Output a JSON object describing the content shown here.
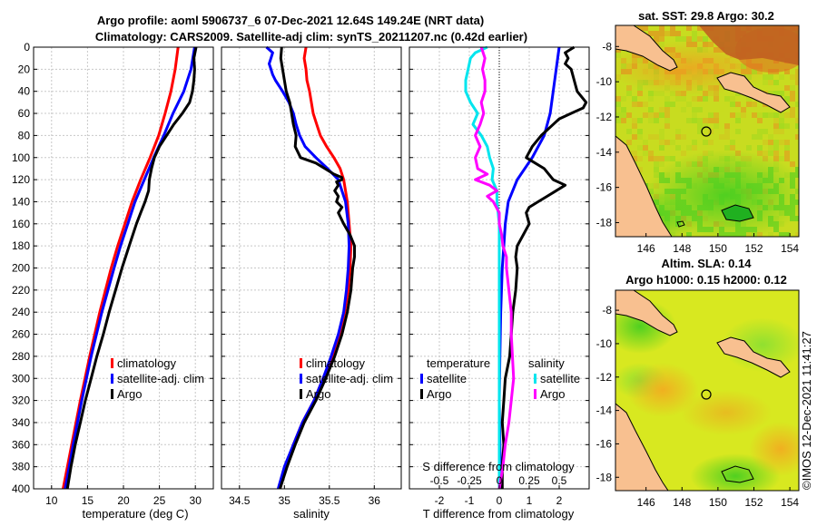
{
  "title": {
    "line1": "Argo profile: aoml 5906737_6 07-Dec-2021 12.64S 149.24E (NRT data)",
    "line2": "Climatology: CARS2009. Satellite-adj clim: synTS_20211207.nc (0.42d earlier)"
  },
  "watermark": "©IMOS 12-Dec-2021 11:41:27",
  "colors": {
    "climatology": "#ff0000",
    "satellite": "#0000ff",
    "argo": "#000000",
    "sal_satellite": "#00e5ee",
    "sal_argo": "#ff00ff",
    "land": "#f8c090"
  },
  "chart_data": [
    {
      "type": "line",
      "xlabel": "temperature (deg C)",
      "xlim": [
        7.5,
        32.5
      ],
      "xticks": [
        "10",
        "15",
        "20",
        "25",
        "30"
      ],
      "xtick_values": [
        10,
        15,
        20,
        25,
        30
      ],
      "ylim": [
        0,
        400
      ],
      "yticks": [
        "0",
        "20",
        "40",
        "60",
        "80",
        "100",
        "120",
        "140",
        "160",
        "180",
        "200",
        "220",
        "240",
        "260",
        "280",
        "300",
        "320",
        "340",
        "360",
        "380",
        "400"
      ],
      "legend": [
        "climatology",
        "satellite-adj. clim",
        "Argo"
      ],
      "series": [
        {
          "name": "climatology",
          "depth": [
            0,
            20,
            40,
            60,
            80,
            100,
            120,
            140,
            160,
            180,
            200,
            240,
            280,
            320,
            360,
            400
          ],
          "values": [
            27.6,
            27.2,
            26.6,
            25.8,
            24.9,
            23.7,
            22.4,
            21.2,
            20.2,
            19.2,
            18.3,
            16.7,
            15.3,
            14.0,
            12.8,
            11.6
          ]
        },
        {
          "name": "satellite-adj. clim",
          "depth": [
            0,
            20,
            40,
            60,
            80,
            100,
            120,
            140,
            160,
            180,
            200,
            240,
            280,
            320,
            360,
            400
          ],
          "values": [
            29.9,
            29.4,
            28.4,
            26.9,
            25.6,
            24.2,
            22.9,
            21.6,
            20.6,
            19.6,
            18.7,
            17.0,
            15.5,
            14.2,
            13.0,
            11.9
          ]
        },
        {
          "name": "Argo",
          "depth": [
            0,
            10,
            20,
            30,
            40,
            50,
            60,
            70,
            80,
            90,
            100,
            110,
            120,
            130,
            140,
            150,
            160,
            180,
            200,
            220,
            240,
            260,
            280,
            300,
            320,
            340,
            360,
            380,
            400
          ],
          "values": [
            30.1,
            29.8,
            29.9,
            29.8,
            29.6,
            29.2,
            28.2,
            27.0,
            26.0,
            25.0,
            24.3,
            23.9,
            23.6,
            23.5,
            23.0,
            22.4,
            21.8,
            20.8,
            19.8,
            18.9,
            18.0,
            17.2,
            16.3,
            15.5,
            14.7,
            14.0,
            13.3,
            12.7,
            12.2
          ]
        }
      ]
    },
    {
      "type": "line",
      "xlabel": "salinity",
      "xlim": [
        34.3,
        36.3
      ],
      "xticks": [
        "34.5",
        "35",
        "35.5",
        "36"
      ],
      "xtick_values": [
        34.5,
        35,
        35.5,
        36
      ],
      "ylim": [
        0,
        400
      ],
      "legend": [
        "climatology",
        "satellite-adj. clim",
        "Argo"
      ],
      "series": [
        {
          "name": "climatology",
          "depth": [
            0,
            10,
            20,
            30,
            40,
            50,
            60,
            70,
            80,
            90,
            100,
            110,
            120,
            140,
            160,
            180,
            200,
            220,
            240,
            260,
            280,
            300,
            320,
            340,
            360,
            380,
            400
          ],
          "values": [
            35.24,
            35.22,
            35.24,
            35.25,
            35.28,
            35.3,
            35.32,
            35.36,
            35.4,
            35.47,
            35.55,
            35.62,
            35.66,
            35.7,
            35.72,
            35.74,
            35.73,
            35.71,
            35.67,
            35.61,
            35.53,
            35.43,
            35.33,
            35.2,
            35.1,
            35.02,
            34.95
          ]
        },
        {
          "name": "satellite-adj. clim",
          "depth": [
            0,
            5,
            10,
            15,
            20,
            25,
            30,
            40,
            50,
            60,
            70,
            80,
            90,
            100,
            110,
            120,
            140,
            160,
            180,
            200,
            220,
            240,
            260,
            280,
            300,
            320,
            340,
            360,
            380,
            400
          ],
          "values": [
            34.8,
            34.87,
            34.85,
            34.83,
            34.85,
            34.87,
            34.9,
            34.98,
            35.05,
            35.1,
            35.13,
            35.17,
            35.23,
            35.35,
            35.48,
            35.6,
            35.68,
            35.71,
            35.72,
            35.71,
            35.69,
            35.66,
            35.6,
            35.52,
            35.43,
            35.33,
            35.2,
            35.1,
            35.0,
            34.93
          ]
        },
        {
          "name": "Argo",
          "depth": [
            0,
            10,
            20,
            30,
            40,
            50,
            60,
            70,
            80,
            90,
            100,
            105,
            110,
            115,
            118,
            120,
            122,
            125,
            130,
            135,
            140,
            145,
            150,
            160,
            170,
            180,
            190,
            200,
            220,
            240,
            260,
            280,
            300,
            320,
            340,
            360,
            380,
            400
          ],
          "values": [
            34.97,
            34.96,
            34.98,
            35.0,
            35.02,
            35.06,
            35.08,
            35.1,
            35.13,
            35.12,
            35.18,
            35.35,
            35.45,
            35.55,
            35.64,
            35.64,
            35.58,
            35.6,
            35.56,
            35.6,
            35.58,
            35.64,
            35.6,
            35.66,
            35.73,
            35.78,
            35.78,
            35.76,
            35.74,
            35.7,
            35.64,
            35.56,
            35.46,
            35.35,
            35.22,
            35.12,
            35.03,
            34.95
          ]
        }
      ]
    },
    {
      "type": "line",
      "xlabel": "T difference from climatology",
      "xlabel_top": "S difference from climatology",
      "xlim": [
        -3,
        3
      ],
      "xticks": [
        "-2",
        "-1",
        "0",
        "1",
        "2"
      ],
      "xtick_values": [
        -2,
        -1,
        0,
        1,
        2
      ],
      "s_xticks": [
        "-0.5",
        "-0.25",
        "0",
        "0.25",
        "0.5"
      ],
      "ylim": [
        0,
        400
      ],
      "legend_t": [
        "temperature",
        "satellite",
        "Argo"
      ],
      "legend_s": [
        "salinity",
        "satellite",
        "Argo"
      ],
      "series": [
        {
          "name": "T satellite",
          "depth": [
            0,
            20,
            40,
            60,
            80,
            100,
            120,
            140,
            160,
            180,
            200,
            240,
            280,
            320,
            360,
            400
          ],
          "values": [
            2.0,
            1.9,
            1.8,
            1.7,
            1.5,
            1.1,
            0.6,
            0.3,
            0.2,
            0.15,
            0.1,
            0.05,
            0.02,
            0.0,
            0.02,
            0.05
          ]
        },
        {
          "name": "T Argo",
          "depth": [
            0,
            5,
            10,
            15,
            20,
            30,
            40,
            50,
            55,
            60,
            65,
            70,
            80,
            90,
            100,
            110,
            120,
            125,
            130,
            135,
            140,
            145,
            150,
            160,
            170,
            180,
            190,
            200,
            220,
            240,
            260,
            280,
            300,
            320,
            340,
            360,
            380,
            400
          ],
          "values": [
            2.5,
            2.2,
            2.3,
            2.2,
            2.4,
            2.5,
            2.6,
            2.9,
            2.8,
            2.4,
            2.0,
            1.8,
            1.4,
            1.1,
            0.9,
            1.5,
            1.8,
            2.2,
            1.9,
            1.6,
            1.3,
            1.0,
            0.9,
            1.0,
            0.8,
            0.6,
            0.55,
            0.6,
            0.55,
            0.45,
            0.4,
            0.35,
            0.2,
            0.15,
            0.1,
            0.15,
            0.1,
            0.1
          ]
        },
        {
          "name": "S satellite",
          "depth": [
            0,
            5,
            10,
            20,
            30,
            40,
            50,
            60,
            70,
            80,
            90,
            100,
            110,
            120,
            130,
            140,
            160,
            180,
            200,
            240,
            280,
            320,
            360,
            400
          ],
          "values": [
            -0.1,
            -0.2,
            -0.24,
            -0.26,
            -0.28,
            -0.28,
            -0.24,
            -0.18,
            -0.22,
            -0.15,
            -0.1,
            -0.08,
            -0.05,
            -0.06,
            -0.02,
            -0.02,
            0.0,
            0.0,
            0.0,
            0.0,
            0.0,
            0.0,
            0.0,
            0.0
          ]
        },
        {
          "name": "S Argo",
          "depth": [
            0,
            10,
            20,
            30,
            40,
            50,
            60,
            70,
            80,
            90,
            100,
            110,
            115,
            120,
            125,
            130,
            135,
            140,
            150,
            160,
            170,
            180,
            190,
            200,
            220,
            240,
            260,
            280,
            300,
            320,
            340,
            360,
            380,
            400
          ],
          "values": [
            -0.15,
            -0.12,
            -0.14,
            -0.12,
            -0.12,
            -0.15,
            -0.13,
            -0.16,
            -0.2,
            -0.16,
            -0.2,
            -0.18,
            -0.1,
            -0.2,
            -0.08,
            -0.02,
            -0.1,
            -0.05,
            0.0,
            0.0,
            0.02,
            0.03,
            0.06,
            0.06,
            0.08,
            0.1,
            0.1,
            0.11,
            0.12,
            0.1,
            0.08,
            0.05,
            0.03,
            0.0
          ]
        }
      ]
    },
    {
      "type": "heatmap",
      "title": "sat. SST: 29.8 Argo: 30.2",
      "xticks": [
        "146",
        "148",
        "150",
        "152",
        "154"
      ],
      "xtick_values": [
        146,
        148,
        150,
        152,
        154
      ],
      "yticks": [
        "-8",
        "-10",
        "-12",
        "-14",
        "-16",
        "-18"
      ],
      "ytick_values": [
        -8,
        -10,
        -12,
        -14,
        -16,
        -18
      ],
      "lon_range": [
        144.3,
        154.5
      ],
      "lat_range": [
        -18.8,
        -6.8
      ],
      "profile_location": [
        149.24,
        -12.64
      ]
    },
    {
      "type": "heatmap",
      "title_line1": "Altim. SLA: 0.14",
      "title_line2": "Argo h1000: 0.15 h2000: 0.12",
      "xticks": [
        "146",
        "148",
        "150",
        "152",
        "154"
      ],
      "xtick_values": [
        146,
        148,
        150,
        152,
        154
      ],
      "yticks": [
        "-8",
        "-10",
        "-12",
        "-14",
        "-16",
        "-18"
      ],
      "ytick_values": [
        -8,
        -10,
        -12,
        -14,
        -16,
        -18
      ],
      "lon_range": [
        144.3,
        154.5
      ],
      "lat_range": [
        -18.8,
        -6.8
      ],
      "profile_location": [
        149.24,
        -12.64
      ]
    }
  ]
}
